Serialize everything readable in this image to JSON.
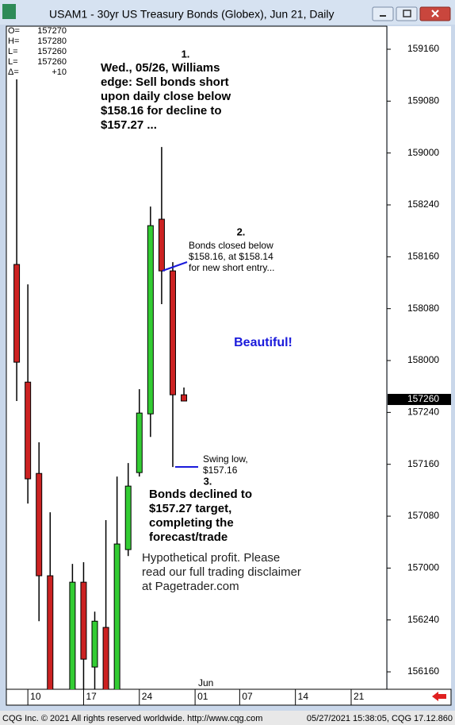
{
  "window": {
    "title": "USAM1 - 30yr US Treasury Bonds (Globex), Jun 21, Daily",
    "footer_left": "CQG Inc. © 2021 All rights reserved worldwide. http://www.cqg.com",
    "footer_right": "05/27/2021 15:38:05, CQG 17.12.860"
  },
  "chart_data": {
    "type": "candlestick",
    "readout": [
      [
        "O=",
        "157270"
      ],
      [
        "H=",
        "157280"
      ],
      [
        "L=",
        "157260"
      ],
      [
        "L=",
        "157260"
      ],
      [
        "Δ=",
        "+10"
      ]
    ],
    "x": [
      0,
      1,
      2,
      3,
      5,
      6,
      7,
      8,
      9,
      10,
      11,
      12,
      13,
      14,
      15
    ],
    "open": [
      158.463,
      157.896,
      157.456,
      156.963,
      156.4,
      156.932,
      156.523,
      156.714,
      156.4,
      157.089,
      157.46,
      157.743,
      158.681,
      158.432,
      157.835
    ],
    "high": [
      159.355,
      158.367,
      157.606,
      157.269,
      157.02,
      157.028,
      156.79,
      157.231,
      157.441,
      157.506,
      157.862,
      158.742,
      159.029,
      158.474,
      157.87
    ],
    "low": [
      157.805,
      157.311,
      156.744,
      156.35,
      156.35,
      156.4,
      156.4,
      156.35,
      156.35,
      157.058,
      157.441,
      157.632,
      158.272,
      157.487,
      157.805
    ],
    "close": [
      157.992,
      157.43,
      156.963,
      156.4,
      156.932,
      156.561,
      156.744,
      156.4,
      157.116,
      157.395,
      157.747,
      158.65,
      158.432,
      157.835,
      157.805
    ],
    "up_color": "#33cc33",
    "down_color": "#cc2222",
    "xlim": [
      -0.93,
      33.2
    ],
    "xticks": [
      {
        "value": 1,
        "label": "10"
      },
      {
        "value": 6,
        "label": "17"
      },
      {
        "value": 11,
        "label": "24"
      },
      {
        "value": 16,
        "label": "01"
      },
      {
        "value": 20,
        "label": "07"
      },
      {
        "value": 25,
        "label": "14"
      },
      {
        "value": 30,
        "label": "21"
      }
    ],
    "month_label": "Jun",
    "ylim": [
      156.416,
      159.611
    ],
    "yticks": [
      {
        "value": 159.5,
        "label": "159160"
      },
      {
        "value": 159.25,
        "label": "159080"
      },
      {
        "value": 159.0,
        "label": "159000"
      },
      {
        "value": 158.75,
        "label": "158240"
      },
      {
        "value": 158.5,
        "label": "158160"
      },
      {
        "value": 158.25,
        "label": "158080"
      },
      {
        "value": 158.0,
        "label": "158000"
      },
      {
        "value": 157.75,
        "label": "157240"
      },
      {
        "value": 157.5,
        "label": "157160"
      },
      {
        "value": 157.25,
        "label": "157080"
      },
      {
        "value": 157.0,
        "label": "157000"
      },
      {
        "value": 156.75,
        "label": "156240"
      },
      {
        "value": 156.5,
        "label": "156160"
      }
    ],
    "last": {
      "value": 157.8125,
      "label": "157260"
    },
    "annotations": [
      [
        "1."
      ],
      [
        "Wed., 05/26, Williams",
        "edge: Sell bonds short",
        "upon daily close below",
        "$158.16 for decline to",
        "$157.27 ..."
      ],
      [
        "2."
      ],
      [
        "Bonds closed below",
        "$158.16, at $158.14",
        "for new short entry..."
      ],
      [
        "Beautiful!"
      ],
      [
        "Swing low,",
        "$157.16"
      ],
      [
        "3."
      ],
      [
        "Bonds declined to",
        "$157.27 target,",
        "completing the",
        "forecast/trade"
      ],
      [
        "Hypothetical profit. Please",
        "read our full trading disclaimer",
        "at Pagetrader.com"
      ]
    ]
  }
}
